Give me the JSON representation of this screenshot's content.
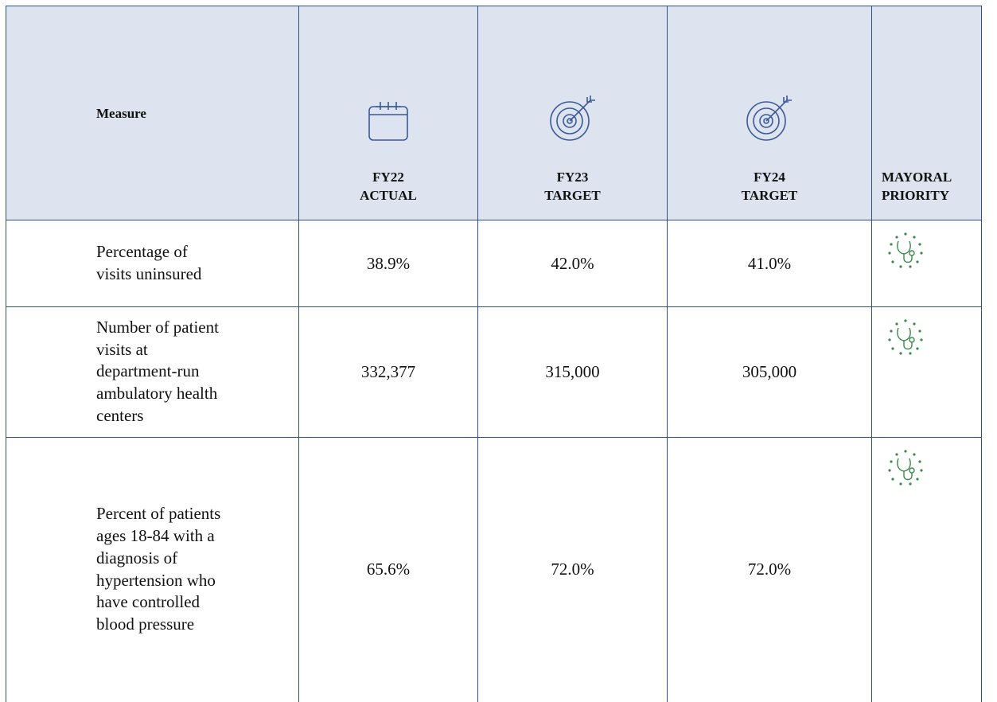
{
  "table": {
    "columns": [
      "Measure",
      "FY22 ACTUAL",
      "FY23 TARGET",
      "FY24 TARGET",
      "MAYORAL PRIORITY"
    ],
    "rows": [
      [
        "Percentage of visits uninsured",
        "38.9%",
        "42.0%",
        "41.0%"
      ],
      [
        "Number of patient visits at department-run ambulatory health centers",
        "332,377",
        "315,000",
        "305,000"
      ],
      [
        "Percent of patients ages 18-84 with a diagnosis of hypertension who have controlled blood pressure",
        "65.6%",
        "72.0%",
        "72.0%"
      ]
    ]
  }
}
